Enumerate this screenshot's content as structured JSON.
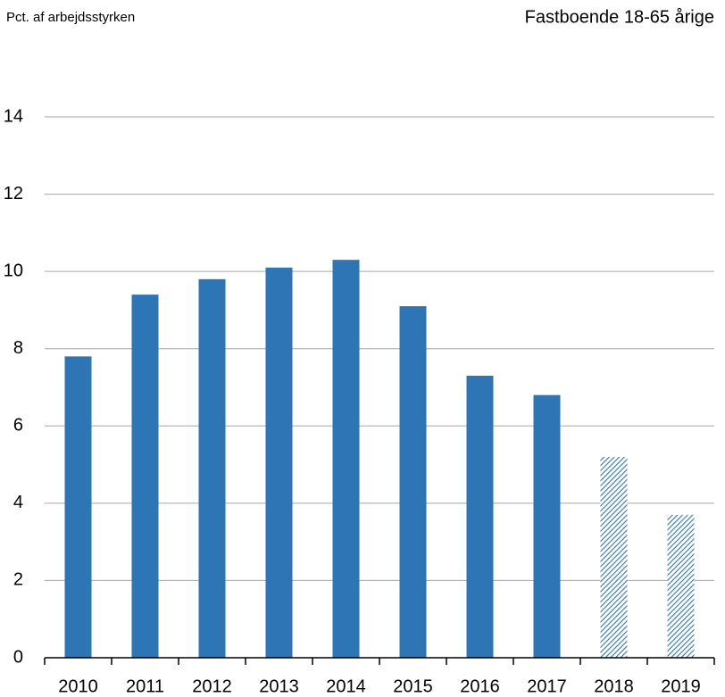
{
  "chart_data": {
    "type": "bar",
    "title": "Fastboende 18-65 årige",
    "y_axis_label": "Pct. af arbejdsstyrken",
    "categories": [
      "2010",
      "2011",
      "2012",
      "2013",
      "2014",
      "2015",
      "2016",
      "2017",
      "2018",
      "2019"
    ],
    "values": [
      7.8,
      9.4,
      9.8,
      10.1,
      10.3,
      9.1,
      7.3,
      6.8,
      5.2,
      3.7
    ],
    "pattern": [
      "solid",
      "solid",
      "solid",
      "solid",
      "solid",
      "solid",
      "solid",
      "solid",
      "hatched",
      "hatched"
    ],
    "color": "#2e75b6",
    "ylim": [
      0,
      14
    ],
    "yticks": [
      0,
      2,
      4,
      6,
      8,
      10,
      12,
      14
    ],
    "grid": true
  }
}
